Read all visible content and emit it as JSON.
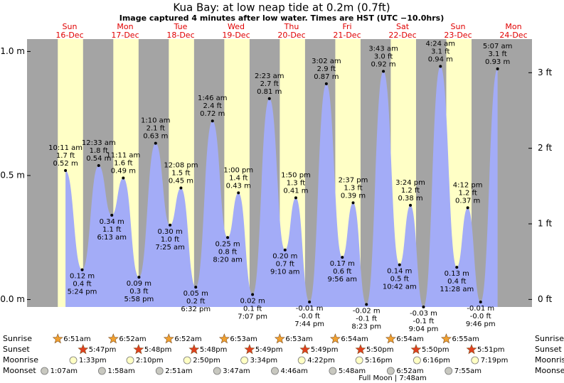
{
  "chart_data": {
    "type": "tide",
    "title": "Kua Bay: at low  neap tide at 0.2m (0.7ft)",
    "subtitle": "Image captured 4 minutes after low water. Times are HST (UTC −10.0hrs)",
    "ylim": [
      -0.03,
      1.05
    ],
    "yticks": [
      {
        "value": 0,
        "label": "0.0 m"
      },
      {
        "value": 0.5,
        "label": "0.5 m"
      },
      {
        "value": 1,
        "label": "1.0 m"
      }
    ],
    "y2lim": [
      -0.1,
      3.445
    ],
    "y2ticks": [
      {
        "value": 0,
        "label": "0 ft"
      },
      {
        "value": 1,
        "label": "1 ft"
      },
      {
        "value": 2,
        "label": "2 ft"
      },
      {
        "value": 3,
        "label": "3 ft"
      }
    ],
    "color": "#a3acf7",
    "row_labels": [
      "Sunrise",
      "Sunset",
      "Moonrise",
      "Moonset"
    ],
    "note": "Full Moon | 7:48am",
    "days": [
      {
        "weekday": "Sun",
        "date": "16-Dec",
        "sunrise": "6:51am",
        "sunset": "5:47pm",
        "moonrise": "1:33pm",
        "moonset": "1:07am",
        "tides": {
          "times": [
            "10:11 am",
            "5:24 pm"
          ],
          "values": [
            0.52,
            0.12
          ],
          "value_labels": [
            "0.52 m",
            "0.12 m"
          ],
          "ft_labels": [
            "1.7 ft",
            "0.4 ft"
          ]
        }
      },
      {
        "weekday": "Mon",
        "date": "17-Dec",
        "sunrise": "6:52am",
        "sunset": "5:48pm",
        "moonrise": "2:10pm",
        "moonset": "1:58am",
        "tides": {
          "times": [
            "12:33 am",
            "6:13 am",
            "11:11 am",
            "5:58 pm"
          ],
          "values": [
            0.54,
            0.34,
            0.49,
            0.09
          ],
          "value_labels": [
            "0.54 m",
            "0.34 m",
            "0.49 m",
            "0.09 m"
          ],
          "ft_labels": [
            "1.8 ft",
            "1.1 ft",
            "1.6 ft",
            "0.3 ft"
          ]
        }
      },
      {
        "weekday": "Tue",
        "date": "18-Dec",
        "sunrise": "6:52am",
        "sunset": "5:48pm",
        "moonrise": "2:50pm",
        "moonset": "2:51am",
        "tides": {
          "times": [
            "1:10 am",
            "7:25 am",
            "12:08 pm",
            "6:32 pm"
          ],
          "values": [
            0.63,
            0.3,
            0.45,
            0.05
          ],
          "value_labels": [
            "0.63 m",
            "0.30 m",
            "0.45 m",
            "0.05 m"
          ],
          "ft_labels": [
            "2.1 ft",
            "1.0 ft",
            "1.5 ft",
            "0.2 ft"
          ]
        }
      },
      {
        "weekday": "Wed",
        "date": "19-Dec",
        "sunrise": "6:53am",
        "sunset": "5:49pm",
        "moonrise": "3:34pm",
        "moonset": "3:47am",
        "tides": {
          "times": [
            "1:46 am",
            "8:20 am",
            "1:00 pm",
            "7:07 pm"
          ],
          "values": [
            0.72,
            0.25,
            0.43,
            0.02
          ],
          "value_labels": [
            "0.72 m",
            "0.25 m",
            "0.43 m",
            "0.02 m"
          ],
          "ft_labels": [
            "2.4 ft",
            "0.8 ft",
            "1.4 ft",
            "0.1 ft"
          ]
        }
      },
      {
        "weekday": "Thu",
        "date": "20-Dec",
        "sunrise": "6:53am",
        "sunset": "5:49pm",
        "moonrise": "4:22pm",
        "moonset": "4:46am",
        "tides": {
          "times": [
            "2:23 am",
            "9:10 am",
            "1:50 pm",
            "7:44 pm"
          ],
          "values": [
            0.81,
            0.2,
            0.41,
            -0.01
          ],
          "value_labels": [
            "0.81 m",
            "0.20 m",
            "0.41 m",
            "-0.01 m"
          ],
          "ft_labels": [
            "2.7 ft",
            "0.7 ft",
            "1.3 ft",
            "-0.0 ft"
          ]
        }
      },
      {
        "weekday": "Fri",
        "date": "21-Dec",
        "sunrise": "6:54am",
        "sunset": "5:50pm",
        "moonrise": "5:16pm",
        "moonset": "5:48am",
        "tides": {
          "times": [
            "3:02 am",
            "9:56 am",
            "2:37 pm",
            "8:23 pm"
          ],
          "values": [
            0.87,
            0.17,
            0.39,
            -0.02
          ],
          "value_labels": [
            "0.87 m",
            "0.17 m",
            "0.39 m",
            "-0.02 m"
          ],
          "ft_labels": [
            "2.9 ft",
            "0.6 ft",
            "1.3 ft",
            "-0.1 ft"
          ]
        }
      },
      {
        "weekday": "Sat",
        "date": "22-Dec",
        "sunrise": "6:54am",
        "sunset": "5:50pm",
        "moonrise": "6:16pm",
        "moonset": "6:52am",
        "tides": {
          "times": [
            "3:43 am",
            "10:42 am",
            "3:24 pm",
            "9:04 pm"
          ],
          "values": [
            0.92,
            0.14,
            0.38,
            -0.03
          ],
          "value_labels": [
            "0.92 m",
            "0.14 m",
            "0.38 m",
            "-0.03 m"
          ],
          "ft_labels": [
            "3.0 ft",
            "0.5 ft",
            "1.2 ft",
            "-0.1 ft"
          ]
        }
      },
      {
        "weekday": "Sun",
        "date": "23-Dec",
        "sunrise": "6:55am",
        "sunset": "5:51pm",
        "moonrise": "7:19pm",
        "moonset": "7:55am",
        "tides": {
          "times": [
            "4:24 am",
            "11:28 am",
            "4:12 pm",
            "9:46 pm"
          ],
          "values": [
            0.94,
            0.13,
            0.37,
            -0.01
          ],
          "value_labels": [
            "0.94 m",
            "0.13 m",
            "0.37 m",
            "-0.01 m"
          ],
          "ft_labels": [
            "3.1 ft",
            "0.4 ft",
            "1.2 ft",
            "-0.0 ft"
          ]
        }
      },
      {
        "weekday": "Mon",
        "date": "24-Dec",
        "tides": {
          "times": [
            "5:07 am"
          ],
          "values": [
            0.93
          ],
          "value_labels": [
            "0.93 m"
          ],
          "ft_labels": [
            "3.1 ft"
          ]
        }
      }
    ]
  }
}
